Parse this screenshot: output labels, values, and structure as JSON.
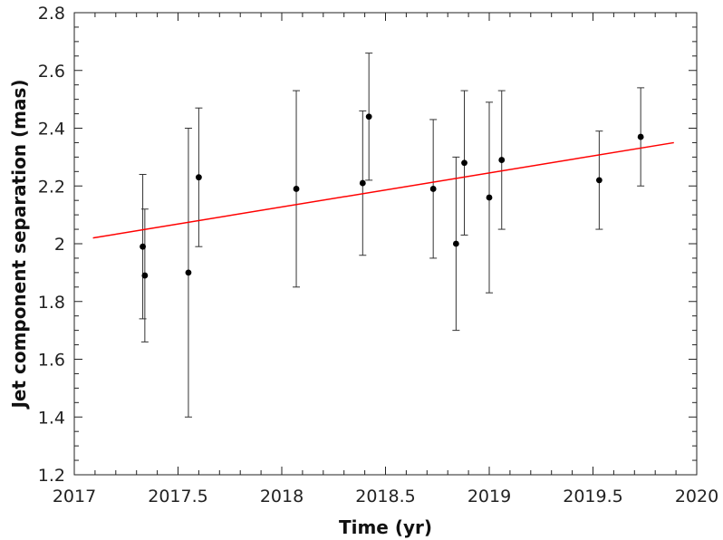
{
  "chart_data": {
    "type": "scatter",
    "xlabel": "Time (yr)",
    "ylabel": "Jet component separation (mas)",
    "xlim": [
      2017,
      2020
    ],
    "ylim": [
      1.2,
      2.8
    ],
    "x_ticks": [
      2017,
      2017.5,
      2018,
      2018.5,
      2019,
      2019.5,
      2020
    ],
    "x_tick_labels": [
      "2017",
      "2017.5",
      "2018",
      "2018.5",
      "2019",
      "2019.5",
      "2020"
    ],
    "y_ticks": [
      1.2,
      1.4,
      1.6,
      1.8,
      2.0,
      2.2,
      2.4,
      2.6,
      2.8
    ],
    "y_tick_labels": [
      "1.2",
      "1.4",
      "1.6",
      "1.8",
      "2",
      "2.2",
      "2.4",
      "2.6",
      "2.8"
    ],
    "grid": false,
    "series": [
      {
        "points": [
          {
            "x": 2017.33,
            "y": 1.99,
            "lo": 1.74,
            "hi": 2.24
          },
          {
            "x": 2017.34,
            "y": 1.89,
            "lo": 1.66,
            "hi": 2.12
          },
          {
            "x": 2017.55,
            "y": 1.9,
            "lo": 1.4,
            "hi": 2.4
          },
          {
            "x": 2017.6,
            "y": 2.23,
            "lo": 1.99,
            "hi": 2.47
          },
          {
            "x": 2018.07,
            "y": 2.19,
            "lo": 1.85,
            "hi": 2.53
          },
          {
            "x": 2018.39,
            "y": 2.21,
            "lo": 1.96,
            "hi": 2.46
          },
          {
            "x": 2018.42,
            "y": 2.44,
            "lo": 2.22,
            "hi": 2.66
          },
          {
            "x": 2018.73,
            "y": 2.19,
            "lo": 1.95,
            "hi": 2.43
          },
          {
            "x": 2018.84,
            "y": 2.0,
            "lo": 1.7,
            "hi": 2.3
          },
          {
            "x": 2018.88,
            "y": 2.28,
            "lo": 2.03,
            "hi": 2.53
          },
          {
            "x": 2019.0,
            "y": 2.16,
            "lo": 1.83,
            "hi": 2.49
          },
          {
            "x": 2019.06,
            "y": 2.29,
            "lo": 2.05,
            "hi": 2.53
          },
          {
            "x": 2019.53,
            "y": 2.22,
            "lo": 2.05,
            "hi": 2.39
          },
          {
            "x": 2019.73,
            "y": 2.37,
            "lo": 2.2,
            "hi": 2.54
          }
        ],
        "color": "#000000"
      }
    ],
    "fit_line": {
      "x": [
        2017.09,
        2019.89
      ],
      "y": [
        2.02,
        2.35
      ],
      "color": "#ff0000"
    }
  }
}
